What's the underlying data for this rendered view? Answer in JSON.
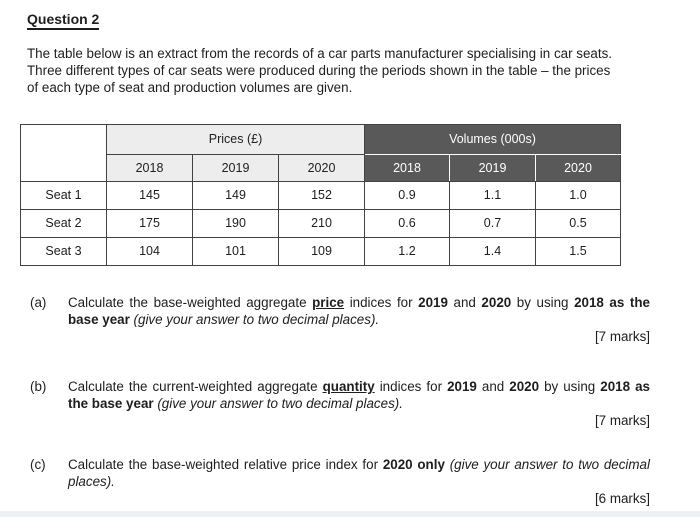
{
  "page": {
    "bg": "#ffffff",
    "footer_strip_color": "#eef1f4"
  },
  "title": "Question 2",
  "intro_lines": [
    "The table below is an extract from the records of a car parts manufacturer specialising in car seats.",
    "Three different types of car seats were produced during the periods shown in the table – the prices",
    "of each type of seat and production volumes are given."
  ],
  "table": {
    "group_headers": {
      "prices": "Prices (£)",
      "volumes": "Volumes (000s)"
    },
    "years": [
      "2018",
      "2019",
      "2020"
    ],
    "rows": [
      {
        "label": "Seat 1",
        "prices": [
          "145",
          "149",
          "152"
        ],
        "volumes": [
          "0.9",
          "1.1",
          "1.0"
        ]
      },
      {
        "label": "Seat 2",
        "prices": [
          "175",
          "190",
          "210"
        ],
        "volumes": [
          "0.6",
          "0.7",
          "0.5"
        ]
      },
      {
        "label": "Seat 3",
        "prices": [
          "104",
          "101",
          "109"
        ],
        "volumes": [
          "1.2",
          "1.4",
          "1.5"
        ]
      }
    ],
    "colors": {
      "light_header_bg": "#ededed",
      "dark_header_bg": "#595959",
      "dark_header_text": "#ffffff",
      "border": "#424242"
    }
  },
  "parts": [
    {
      "label": "(a)",
      "marks": "[7 marks]",
      "segments": [
        {
          "t": "Calculate the base-weighted aggregate ",
          "s": "r"
        },
        {
          "t": "price",
          "s": "bu"
        },
        {
          "t": " indices for ",
          "s": "r"
        },
        {
          "t": "2019",
          "s": "b"
        },
        {
          "t": " and ",
          "s": "r"
        },
        {
          "t": "2020",
          "s": "b"
        },
        {
          "t": " by using ",
          "s": "r"
        },
        {
          "t": "2018 as the base year",
          "s": "b"
        },
        {
          "t": " ",
          "s": "r"
        },
        {
          "t": "(give your answer to two decimal places).",
          "s": "i"
        }
      ]
    },
    {
      "label": "(b)",
      "marks": "[7 marks]",
      "segments": [
        {
          "t": "Calculate the current-weighted aggregate ",
          "s": "r"
        },
        {
          "t": "quantity",
          "s": "bu"
        },
        {
          "t": " indices for ",
          "s": "r"
        },
        {
          "t": "2019",
          "s": "b"
        },
        {
          "t": " and ",
          "s": "r"
        },
        {
          "t": "2020",
          "s": "b"
        },
        {
          "t": " by using ",
          "s": "r"
        },
        {
          "t": "2018 as the base year",
          "s": "b"
        },
        {
          "t": " ",
          "s": "r"
        },
        {
          "t": "(give your answer to two decimal places).",
          "s": "i"
        }
      ]
    },
    {
      "label": "(c)",
      "marks": "[6 marks]",
      "segments": [
        {
          "t": "Calculate the base-weighted relative price index for ",
          "s": "r"
        },
        {
          "t": "2020 only",
          "s": "b"
        },
        {
          "t": " ",
          "s": "r"
        },
        {
          "t": "(give your answer to two decimal places).",
          "s": "i"
        }
      ]
    }
  ]
}
